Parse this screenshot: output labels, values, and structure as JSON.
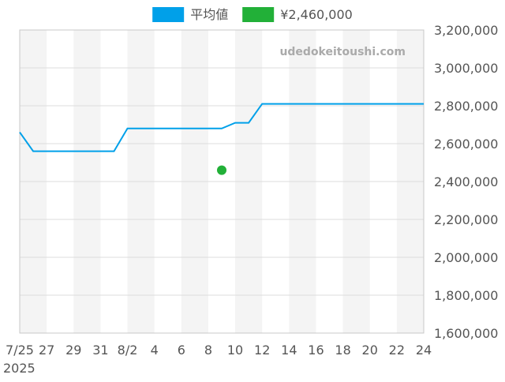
{
  "chart_data": {
    "type": "line",
    "watermark": "udedokeitoushi.com",
    "legend": {
      "placement": "top-center",
      "entries": [
        {
          "label": "平均値",
          "color": "#00a0e9",
          "kind": "line"
        },
        {
          "label": "¥2,460,000",
          "color": "#22b038",
          "kind": "point"
        }
      ]
    },
    "x_axis": {
      "range": [
        "2025-07-25",
        "2025-08-24"
      ],
      "tick_dates": [
        "2025-07-25",
        "2025-07-27",
        "2025-07-29",
        "2025-07-31",
        "2025-08-02",
        "2025-08-04",
        "2025-08-06",
        "2025-08-08",
        "2025-08-10",
        "2025-08-12",
        "2025-08-14",
        "2025-08-16",
        "2025-08-18",
        "2025-08-20",
        "2025-08-22",
        "2025-08-24"
      ],
      "tick_labels": [
        "7/25",
        "27",
        "29",
        "31",
        "8/2",
        "4",
        "6",
        "8",
        "10",
        "12",
        "14",
        "16",
        "18",
        "20",
        "22",
        "24"
      ],
      "year_label": "2025",
      "alternating_bands": true
    },
    "y_axis": {
      "position": "right",
      "range": [
        1600000,
        3200000
      ],
      "ticks": [
        1600000,
        1800000,
        2000000,
        2200000,
        2400000,
        2600000,
        2800000,
        3000000,
        3200000
      ],
      "tick_labels": [
        "1,600,000",
        "1,800,000",
        "2,000,000",
        "2,200,000",
        "2,400,000",
        "2,600,000",
        "2,800,000",
        "3,000,000",
        "3,200,000"
      ],
      "grid": true
    },
    "series": [
      {
        "name": "平均値",
        "type": "line",
        "color": "#00a0e9",
        "points": [
          {
            "x": "2025-07-25",
            "y": 2660000
          },
          {
            "x": "2025-07-26",
            "y": 2560000
          },
          {
            "x": "2025-08-01",
            "y": 2560000
          },
          {
            "x": "2025-08-02",
            "y": 2680000
          },
          {
            "x": "2025-08-09",
            "y": 2680000
          },
          {
            "x": "2025-08-10",
            "y": 2710000
          },
          {
            "x": "2025-08-11",
            "y": 2710000
          },
          {
            "x": "2025-08-12",
            "y": 2810000
          },
          {
            "x": "2025-08-24",
            "y": 2810000
          }
        ]
      },
      {
        "name": "¥2,460,000",
        "type": "scatter",
        "color": "#22b038",
        "points": [
          {
            "x": "2025-08-09",
            "y": 2460000
          }
        ]
      }
    ]
  }
}
